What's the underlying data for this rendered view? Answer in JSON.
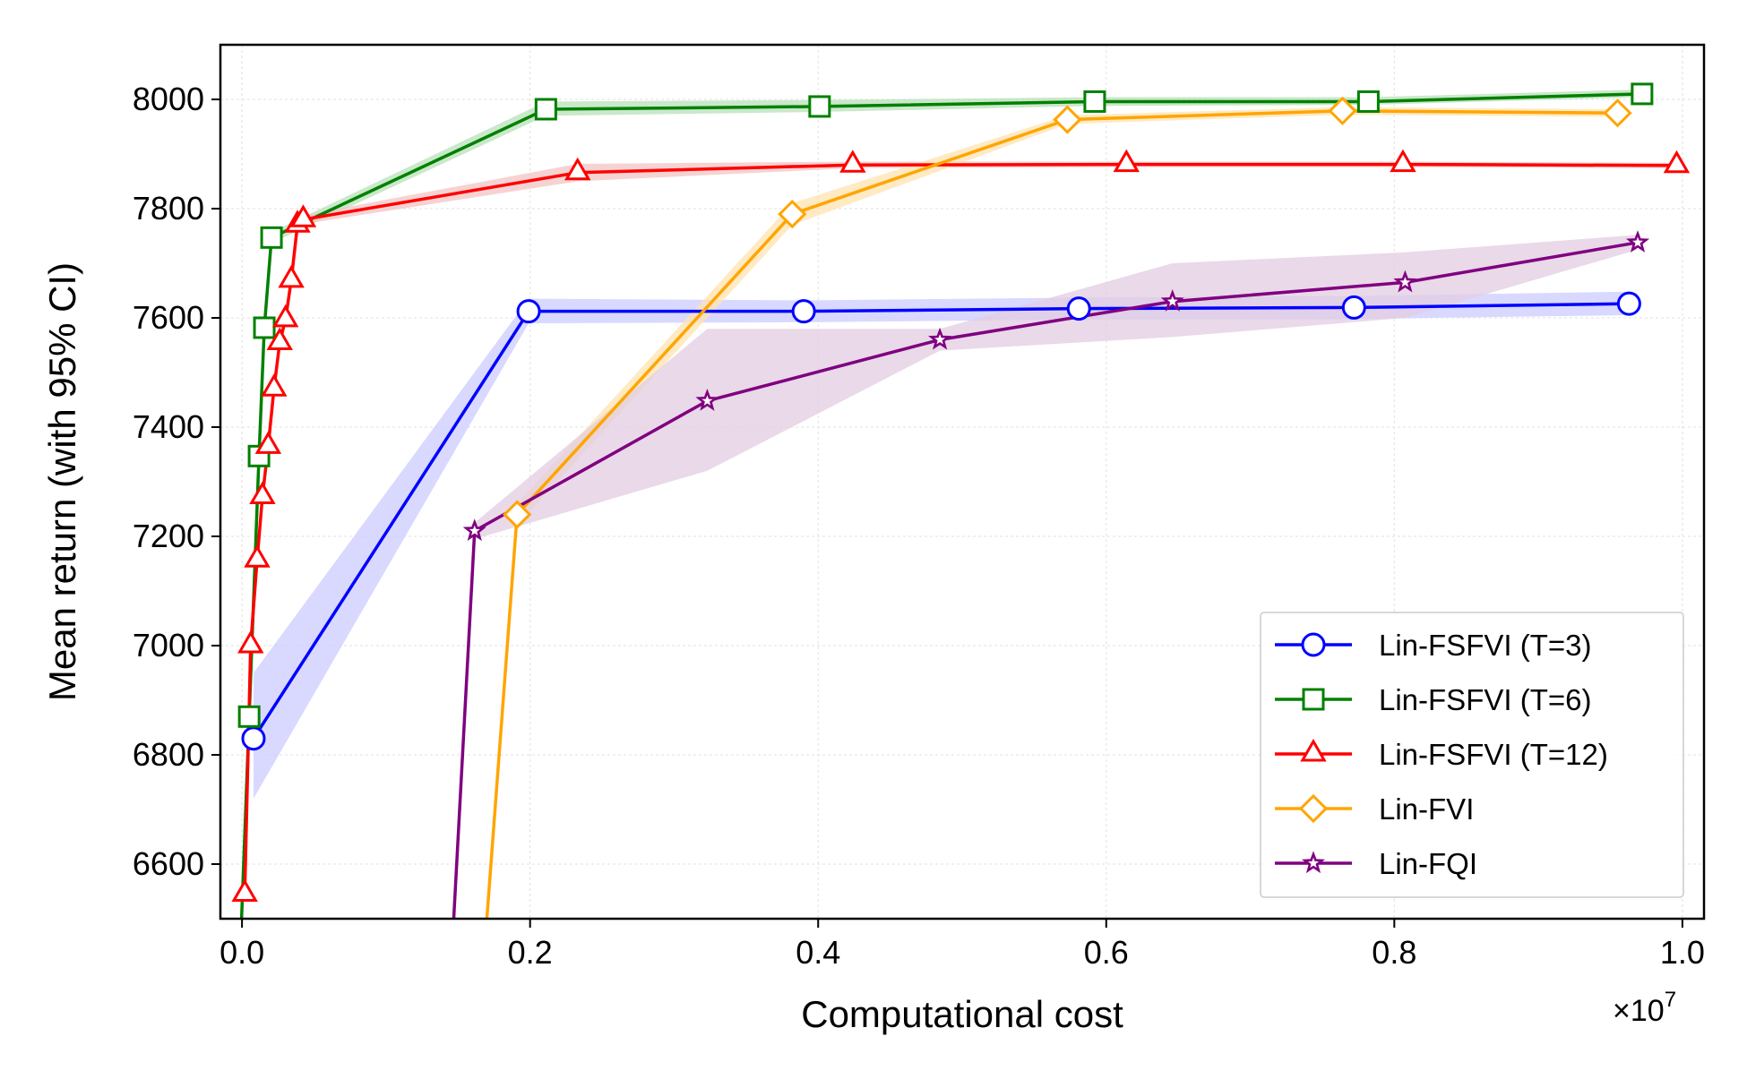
{
  "chart_data": {
    "type": "line",
    "xlabel": "Computational cost",
    "ylabel": "Mean return (with 95% CI)",
    "x_offset_label": "×10",
    "x_offset_exponent": "7",
    "xlim": [
      -0.015,
      1.015
    ],
    "ylim": [
      6500,
      8100
    ],
    "xticks": [
      0.0,
      0.2,
      0.4,
      0.6,
      0.8,
      1.0
    ],
    "xtick_labels": [
      "0.0",
      "0.2",
      "0.4",
      "0.6",
      "0.8",
      "1.0"
    ],
    "yticks": [
      6600,
      6800,
      7000,
      7200,
      7400,
      7600,
      7800,
      8000
    ],
    "ytick_labels": [
      "6600",
      "6800",
      "7000",
      "7200",
      "7400",
      "7600",
      "7800",
      "8000"
    ],
    "grid": true,
    "legend_position": "bottom-right",
    "series": [
      {
        "name": "Lin-FSFVI (T=3)",
        "color": "#0000ff",
        "band_color": "#ccccff",
        "marker": "circle",
        "x": [
          0.008,
          0.199,
          0.39,
          0.581,
          0.772,
          0.963
        ],
        "y": [
          6830,
          7612,
          7612,
          7617,
          7619,
          7626
        ],
        "ci_lower": [
          6720,
          7590,
          7592,
          7597,
          7598,
          7605
        ],
        "ci_upper": [
          6950,
          7635,
          7632,
          7637,
          7640,
          7648
        ]
      },
      {
        "name": "Lin-FSFVI (T=6)",
        "color": "#008000",
        "band_color": "#b8e0b8",
        "marker": "square",
        "x": [
          -0.0003,
          0.005,
          0.0118,
          0.0155,
          0.0205,
          0.211,
          0.401,
          0.592,
          0.782,
          0.972
        ],
        "y": [
          6500,
          6870,
          7347,
          7582,
          7747,
          7982,
          7987,
          7996,
          7996,
          8010
        ],
        "ci_lower": [
          6500,
          6860,
          7337,
          7572,
          7737,
          7970,
          7977,
          7988,
          7990,
          8004
        ],
        "ci_upper": [
          6500,
          6880,
          7357,
          7592,
          7757,
          7996,
          7999,
          8004,
          8004,
          8018
        ]
      },
      {
        "name": "Lin-FSFVI (T=12)",
        "color": "#ff0000",
        "band_color": "#f3c4c4",
        "marker": "triangle",
        "x": [
          0.0019,
          0.006,
          0.0105,
          0.0142,
          0.0182,
          0.0222,
          0.0262,
          0.0302,
          0.0342,
          0.0385,
          0.0425,
          0.233,
          0.424,
          0.614,
          0.806,
          0.996
        ],
        "y": [
          6545,
          7000,
          7157,
          7273,
          7365,
          7470,
          7555,
          7597,
          7669,
          7770,
          7780,
          7866,
          7880,
          7881,
          7881,
          7879
        ],
        "ci_lower": [
          6535,
          6990,
          7147,
          7263,
          7355,
          7460,
          7545,
          7587,
          7659,
          7762,
          7772,
          7850,
          7874,
          7876,
          7876,
          7874
        ],
        "ci_upper": [
          6555,
          7010,
          7167,
          7283,
          7375,
          7480,
          7565,
          7607,
          7679,
          7778,
          7788,
          7882,
          7886,
          7886,
          7886,
          7884
        ]
      },
      {
        "name": "Lin-FVI",
        "color": "#ffa500",
        "band_color": "#ffe3b0",
        "marker": "diamond",
        "x": [
          0.17,
          0.191,
          0.382,
          0.573,
          0.764,
          0.955
        ],
        "y": [
          6500,
          7240,
          7790,
          7963,
          7979,
          7975
        ],
        "ci_lower": [
          6500,
          7220,
          7770,
          7955,
          7972,
          7968
        ],
        "ci_upper": [
          6500,
          7260,
          7810,
          7971,
          7986,
          7982
        ]
      },
      {
        "name": "Lin-FQI",
        "color": "#800080",
        "band_color": "#e2cce2",
        "marker": "star",
        "x": [
          0.147,
          0.1615,
          0.323,
          0.4845,
          0.646,
          0.8075,
          0.969
        ],
        "y": [
          6500,
          7210,
          7448,
          7560,
          7630,
          7665,
          7738
        ],
        "ci_lower": [
          6500,
          7195,
          7320,
          7540,
          7565,
          7600,
          7725
        ],
        "ci_upper": [
          6500,
          7225,
          7580,
          7580,
          7700,
          7720,
          7752
        ]
      }
    ]
  }
}
